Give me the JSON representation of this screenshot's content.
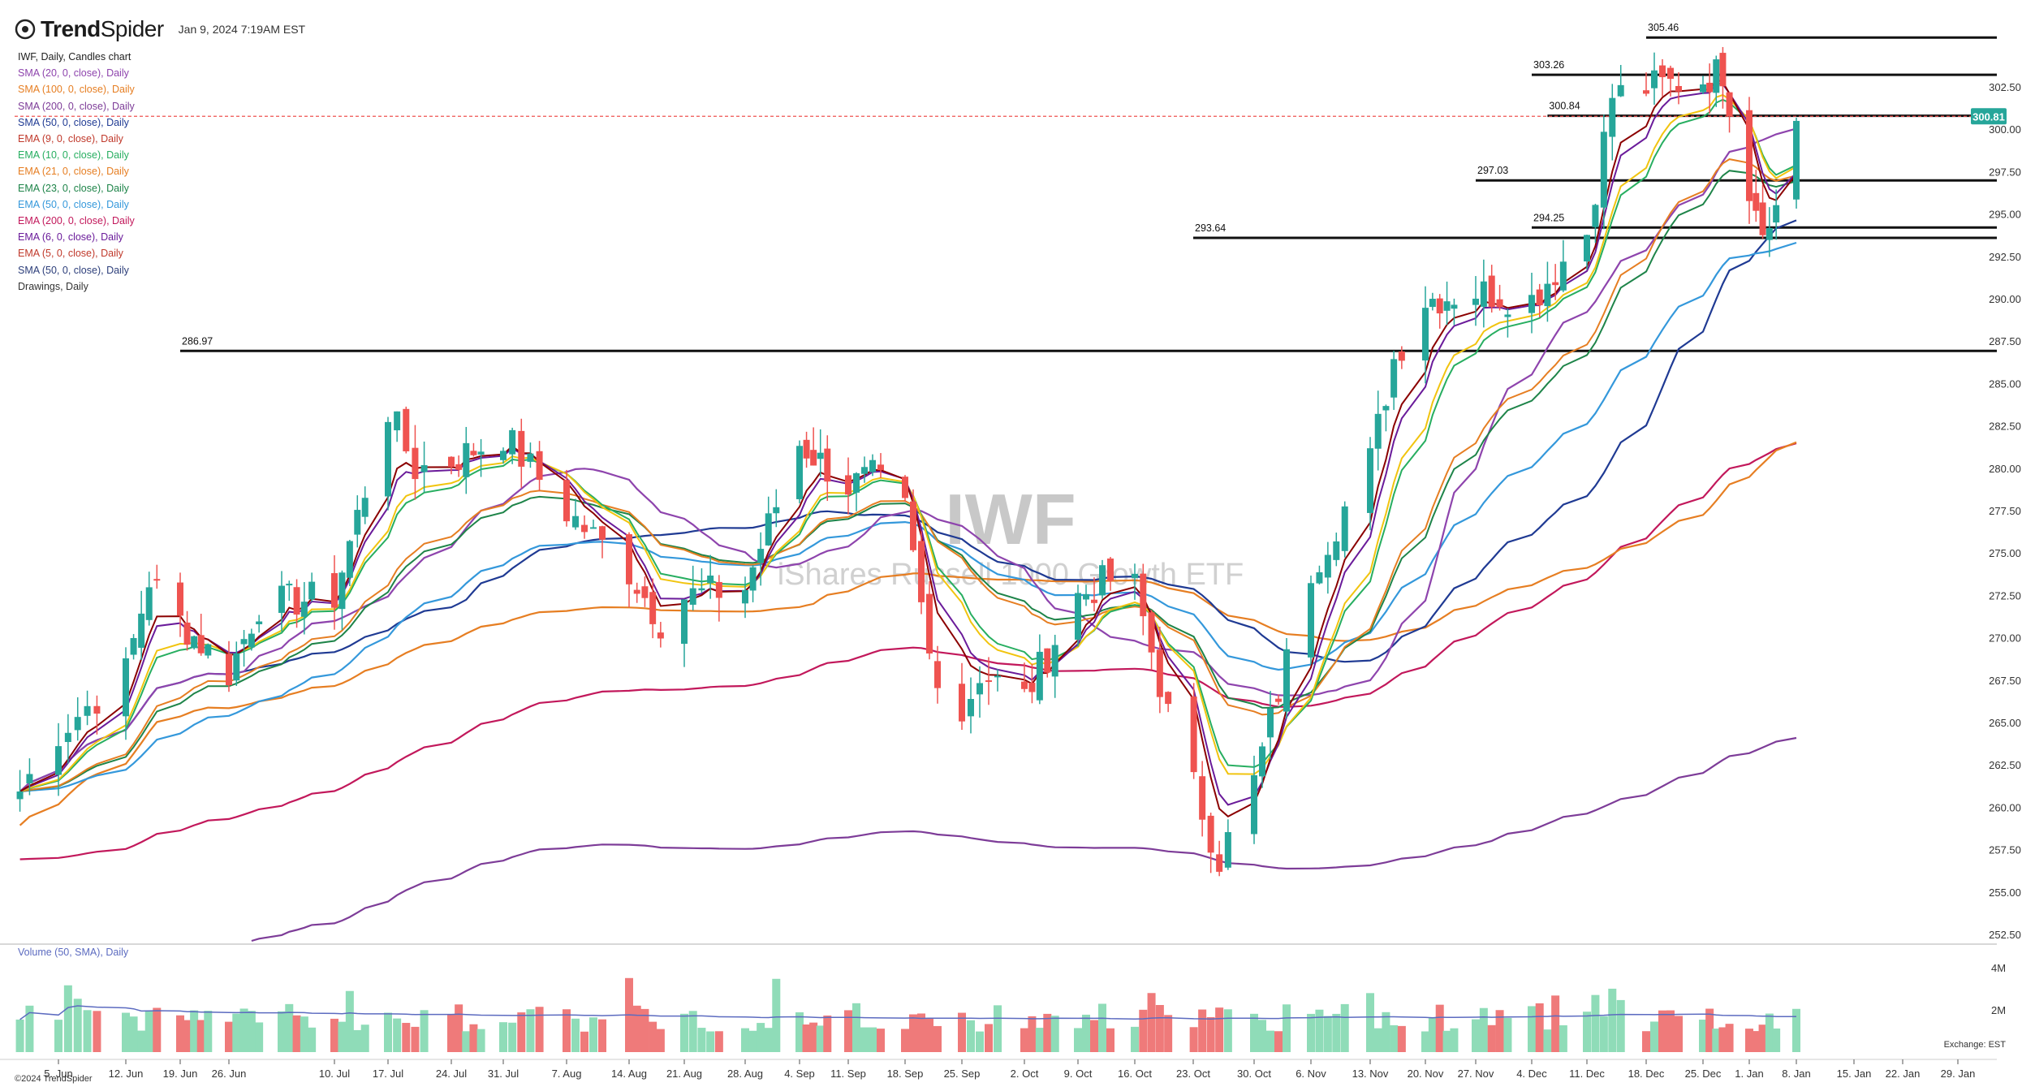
{
  "header": {
    "brand_bold": "Trend",
    "brand_light": "Spider",
    "datetime": "Jan 9, 2024 7:19AM EST"
  },
  "legend": {
    "title": "IWF, Daily, Candles chart",
    "items": [
      {
        "label": "SMA (20, 0, close), Daily",
        "color": "#8e44ad"
      },
      {
        "label": "SMA (100, 0, close), Daily",
        "color": "#e67e22"
      },
      {
        "label": "SMA (200, 0, close), Daily",
        "color": "#7d3c98"
      },
      {
        "label": "SMA (50, 0, close), Daily",
        "color": "#1f3a93"
      },
      {
        "label": "EMA (9, 0, close), Daily",
        "color": "#c0392b"
      },
      {
        "label": "EMA (10, 0, close), Daily",
        "color": "#27ae60"
      },
      {
        "label": "EMA (21, 0, close), Daily",
        "color": "#e67e22"
      },
      {
        "label": "EMA (23, 0, close), Daily",
        "color": "#1e8449"
      },
      {
        "label": "EMA (50, 0, close), Daily",
        "color": "#3498db"
      },
      {
        "label": "EMA (200, 0, close), Daily",
        "color": "#c2185b"
      },
      {
        "label": "EMA (6, 0, close), Daily",
        "color": "#6a1b9a"
      },
      {
        "label": "EMA (5, 0, close), Daily",
        "color": "#c0392b"
      },
      {
        "label": "SMA (50, 0, close), Daily",
        "color": "#2c3e7a"
      },
      {
        "label": "Drawings, Daily",
        "color": "#333333"
      }
    ]
  },
  "volume_label": "Volume (50, SMA), Daily",
  "exchange": "Exchange: EST",
  "copyright": "©2024 TrendSpider",
  "last_price": "300.81",
  "colors": {
    "up": "#26a69a",
    "down": "#ef5350",
    "vol_up": "#8fdcb8",
    "vol_down": "#ef7a7a",
    "accent": "#26a69a"
  },
  "chart_data": {
    "type": "candlestick",
    "title": "IWF",
    "subtitle": "iShares Russell 1000 Growth ETF",
    "ylim": [
      252.5,
      305.0
    ],
    "y_ticks": [
      "302.50",
      "300.00",
      "297.50",
      "295.00",
      "292.50",
      "290.00",
      "287.50",
      "285.00",
      "282.50",
      "280.00",
      "277.50",
      "275.00",
      "272.50",
      "270.00",
      "267.50",
      "265.00",
      "262.50",
      "260.00",
      "257.50",
      "255.00",
      "252.50"
    ],
    "volume_ticks": [
      "4M",
      "2M"
    ],
    "x_ticks": [
      "5. Jun",
      "12. Jun",
      "19. Jun",
      "26. Jun",
      "10. Jul",
      "17. Jul",
      "24. Jul",
      "31. Jul",
      "7. Aug",
      "14. Aug",
      "21. Aug",
      "28. Aug",
      "4. Sep",
      "11. Sep",
      "18. Sep",
      "25. Sep",
      "2. Oct",
      "9. Oct",
      "16. Oct",
      "23. Oct",
      "30. Oct",
      "6. Nov",
      "13. Nov",
      "20. Nov",
      "27. Nov",
      "4. Dec",
      "11. Dec",
      "18. Dec",
      "25. Dec",
      "1. Jan",
      "8. Jan",
      "15. Jan",
      "22. Jan",
      "29. Jan"
    ],
    "levels": [
      {
        "label": "305.46",
        "value": 305.46,
        "from": "18. Dec"
      },
      {
        "label": "303.26",
        "value": 303.26,
        "from": "4. Dec"
      },
      {
        "label": "300.84",
        "value": 300.84,
        "from": "6. Dec"
      },
      {
        "label": "297.03",
        "value": 297.03,
        "from": "27. Nov"
      },
      {
        "label": "294.25",
        "value": 294.25,
        "from": "4. Dec"
      },
      {
        "label": "293.64",
        "value": 293.64,
        "from": "23. Oct"
      },
      {
        "label": "286.97",
        "value": 286.97,
        "from": "19. Jun"
      }
    ],
    "close_anchors": [
      {
        "date": "1. Jun",
        "close": 261.0
      },
      {
        "date": "5. Jun",
        "close": 264.5
      },
      {
        "date": "12. Jun",
        "close": 268.0
      },
      {
        "date": "15. Jun",
        "close": 273.5
      },
      {
        "date": "19. Jun",
        "close": 271.0
      },
      {
        "date": "26. Jun",
        "close": 268.0
      },
      {
        "date": "30. Jun",
        "close": 272.0
      },
      {
        "date": "10. Jul",
        "close": 272.5
      },
      {
        "date": "17. Jul",
        "close": 283.5
      },
      {
        "date": "20. Jul",
        "close": 280.0
      },
      {
        "date": "24. Jul",
        "close": 280.5
      },
      {
        "date": "31. Jul",
        "close": 282.0
      },
      {
        "date": "7. Aug",
        "close": 277.5
      },
      {
        "date": "14. Aug",
        "close": 274.0
      },
      {
        "date": "18. Aug",
        "close": 271.0
      },
      {
        "date": "21. Aug",
        "close": 272.5
      },
      {
        "date": "28. Aug",
        "close": 273.0
      },
      {
        "date": "4. Sep",
        "close": 281.5
      },
      {
        "date": "11. Sep",
        "close": 279.0
      },
      {
        "date": "14. Sep",
        "close": 279.5
      },
      {
        "date": "18. Sep",
        "close": 277.5
      },
      {
        "date": "21. Sep",
        "close": 269.0
      },
      {
        "date": "25. Sep",
        "close": 265.5
      },
      {
        "date": "27. Sep",
        "close": 268.0
      },
      {
        "date": "2. Oct",
        "close": 266.5
      },
      {
        "date": "9. Oct",
        "close": 272.5
      },
      {
        "date": "13. Oct",
        "close": 273.5
      },
      {
        "date": "16. Oct",
        "close": 273.0
      },
      {
        "date": "20. Oct",
        "close": 265.5
      },
      {
        "date": "26. Oct",
        "close": 257.0
      },
      {
        "date": "30. Oct",
        "close": 261.5
      },
      {
        "date": "6. Nov",
        "close": 274.0
      },
      {
        "date": "13. Nov",
        "close": 280.5
      },
      {
        "date": "16. Nov",
        "close": 286.5
      },
      {
        "date": "20. Nov",
        "close": 290.0
      },
      {
        "date": "27. Nov",
        "close": 290.5
      },
      {
        "date": "4. Dec",
        "close": 290.0
      },
      {
        "date": "11. Dec",
        "close": 294.0
      },
      {
        "date": "14. Dec",
        "close": 302.0
      },
      {
        "date": "18. Dec",
        "close": 302.5
      },
      {
        "date": "25. Dec",
        "close": 303.0
      },
      {
        "date": "28. Dec",
        "close": 303.5
      },
      {
        "date": "1. Jan",
        "close": 296.5
      },
      {
        "date": "4. Jan",
        "close": 294.0
      },
      {
        "date": "8. Jan",
        "close": 300.81
      }
    ]
  }
}
